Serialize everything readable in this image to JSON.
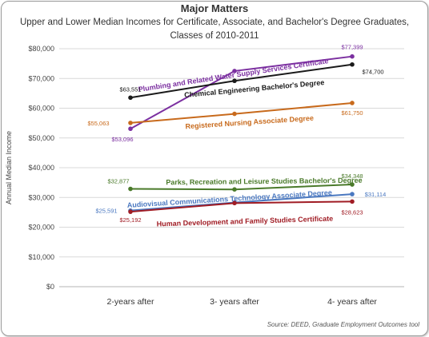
{
  "title": "Major Matters",
  "subtitle_line1": "Upper and Lower Median Incomes for Certificate, Associate, and Bachelor's Degree Graduates,",
  "subtitle_line2": "Classes of 2010-2011",
  "source": "Source: DEED, Graduate Employment Outcomes tool",
  "chart_data": {
    "type": "line",
    "ylabel": "Annual Median Income",
    "xlabel": "",
    "categories": [
      "2-years after",
      "3- years after",
      "4- years after"
    ],
    "ylim": [
      0,
      80000
    ],
    "y_ticks": [
      0,
      10000,
      20000,
      30000,
      40000,
      50000,
      60000,
      70000,
      80000
    ],
    "y_tick_labels": [
      "$0",
      "$10,000",
      "$20,000",
      "$30,000",
      "$40,000",
      "$50,000",
      "$60,000",
      "$70,000",
      "$80,000"
    ],
    "grid": true,
    "series": [
      {
        "name": "Plumbing and Related Water Supply Services Certificate",
        "color": "#7b2fa0",
        "values": [
          53096,
          72500,
          77399
        ],
        "labels": [
          "$53,096",
          "",
          "$77,399"
        ]
      },
      {
        "name": "Chemical Engineering Bachelor's Degree",
        "color": "#1a1a1a",
        "values": [
          63551,
          69200,
          74700
        ],
        "labels": [
          "$63,551",
          "",
          "$74,700"
        ]
      },
      {
        "name": "Registered Nursing Associate Degree",
        "color": "#c86a1c",
        "values": [
          55063,
          58100,
          61750
        ],
        "labels": [
          "$55,063",
          "",
          "$61,750"
        ]
      },
      {
        "name": "Parks, Recreation and Leisure Studies Bachelor's Degree",
        "color": "#4a7a2a",
        "values": [
          32877,
          32700,
          34348
        ],
        "labels": [
          "$32,877",
          "",
          "$34,348"
        ]
      },
      {
        "name": "Audiovisual Communications Technology Associate Degree",
        "color": "#4a78c0",
        "values": [
          25591,
          28300,
          31114
        ],
        "labels": [
          "$25,591",
          "",
          "$31,114"
        ]
      },
      {
        "name": "Human Development and Family Studies Certificate",
        "color": "#a01c24",
        "values": [
          25192,
          28100,
          28623
        ],
        "labels": [
          "$25,192",
          "",
          "$28,623"
        ]
      }
    ]
  }
}
